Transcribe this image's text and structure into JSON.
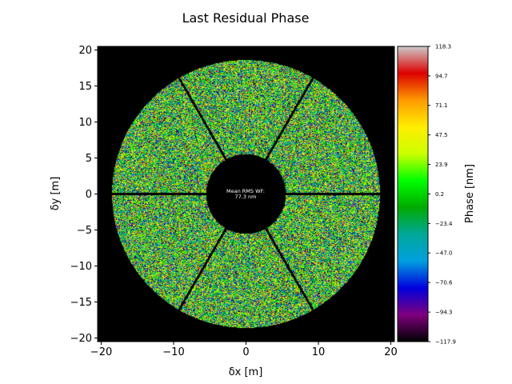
{
  "chart_data": {
    "type": "heatmap",
    "title": "Last Residual Phase",
    "xlabel": "δx [m]",
    "ylabel": "δy [m]",
    "xlim": [
      -20.5,
      20.5
    ],
    "ylim": [
      -20.5,
      20.5
    ],
    "xticks": [
      -20,
      -10,
      0,
      10,
      20
    ],
    "yticks": [
      -20,
      -15,
      -10,
      -5,
      0,
      5,
      10,
      15,
      20
    ],
    "xtick_labels": [
      "−20",
      "−10",
      "0",
      "10",
      "20"
    ],
    "ytick_labels": [
      "−20",
      "−15",
      "−10",
      "−5",
      "0",
      "5",
      "10",
      "15",
      "20"
    ],
    "pupil": {
      "outer_radius_m": 18.5,
      "inner_radius_m": 5.5,
      "spider_angles_deg": [
        0,
        60,
        120,
        180,
        240,
        300
      ]
    },
    "annotation": {
      "line1": "Mean RMS WF:",
      "line2": "77.3 nm"
    },
    "colorbar": {
      "label": "Phase [nm]",
      "min": -117.9,
      "max": 118.3,
      "tick_values": [
        118.3,
        94.7,
        71.1,
        47.5,
        23.9,
        0.2,
        -23.4,
        -47.0,
        -70.6,
        -94.3,
        -117.9
      ],
      "tick_labels": [
        "118.3",
        "94.7",
        "71.1",
        "47.5",
        "23.9",
        "0.2",
        "−23.4",
        "−47.0",
        "−70.6",
        "−94.3",
        "−117.9"
      ],
      "colormap": [
        "#000000",
        "#7f007f",
        "#0000dd",
        "#00a0e0",
        "#00a898",
        "#00aa00",
        "#00ff00",
        "#ccff00",
        "#ffee00",
        "#ff9900",
        "#dd0000",
        "#cccccc"
      ]
    }
  }
}
